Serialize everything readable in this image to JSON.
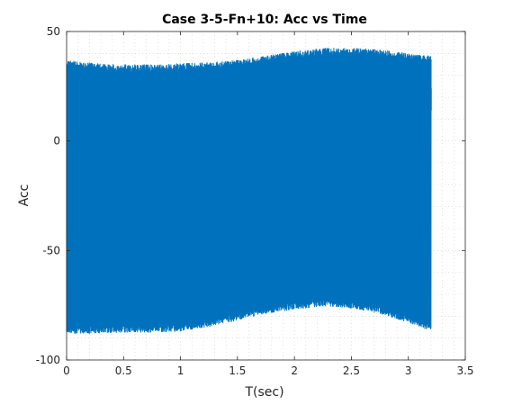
{
  "chart_data": {
    "type": "line",
    "title": "Case 3-5-Fn+10: Acc vs Time",
    "xlabel": "T(sec)",
    "ylabel": "Acc",
    "xlim": [
      0,
      3.5
    ],
    "ylim": [
      -100,
      50
    ],
    "x_ticks": [
      0,
      0.5,
      1,
      1.5,
      2,
      2.5,
      3,
      3.5
    ],
    "y_ticks": [
      -100,
      -50,
      0,
      50
    ],
    "x_tick_labels": [
      "0",
      "0.5",
      "1",
      "1.5",
      "2",
      "2.5",
      "3",
      "3.5"
    ],
    "y_tick_labels": [
      "-100",
      "-50",
      "0",
      "50"
    ],
    "grid": "minor-dotted",
    "series": [
      {
        "color": "#0072bd",
        "x_range": [
          0,
          3.2
        ],
        "upper_envelope": {
          "t": [
            0,
            0.25,
            0.5,
            0.75,
            1.0,
            1.25,
            1.5,
            1.75,
            2.0,
            2.25,
            2.5,
            2.75,
            3.0,
            3.2
          ],
          "acc": [
            37,
            35.5,
            35,
            35,
            35.5,
            36,
            37,
            39,
            41,
            42.5,
            42.5,
            42,
            40,
            39
          ]
        },
        "lower_envelope": {
          "t": [
            0,
            0.25,
            0.5,
            0.75,
            1.0,
            1.25,
            1.5,
            1.75,
            2.0,
            2.25,
            2.5,
            2.75,
            3.0,
            3.2
          ],
          "acc": [
            -88,
            -88,
            -87.5,
            -87.5,
            -87,
            -85,
            -82,
            -79,
            -77,
            -75.5,
            -76.5,
            -79,
            -83,
            -87
          ]
        }
      }
    ]
  }
}
